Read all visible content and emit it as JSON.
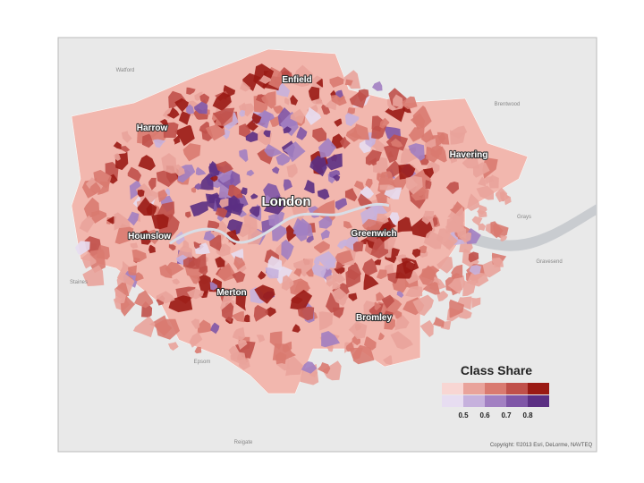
{
  "map": {
    "places": [
      "Enfield",
      "Harrow",
      "Havering",
      "London",
      "Hounslow",
      "Greenwich",
      "Merton",
      "Bromley"
    ],
    "basemap_places": [
      "Watford",
      "Brentwood",
      "Grays",
      "Gravesend",
      "Staines",
      "Epsom",
      "Reigate"
    ],
    "legend": {
      "title": "Class Share",
      "colors_high": [
        "#f8d6d3",
        "#e9a39b",
        "#d97a70",
        "#c0504a",
        "#9a1a14"
      ],
      "colors_low": [
        "#e7ddf1",
        "#c6b1dd",
        "#a280c2",
        "#7f56a7",
        "#5b2f83"
      ],
      "breaks": [
        0.5,
        0.6,
        0.7,
        0.8
      ]
    },
    "attribution": "Copyright: ©2013 Esri, DeLorme, NAVTEQ"
  }
}
